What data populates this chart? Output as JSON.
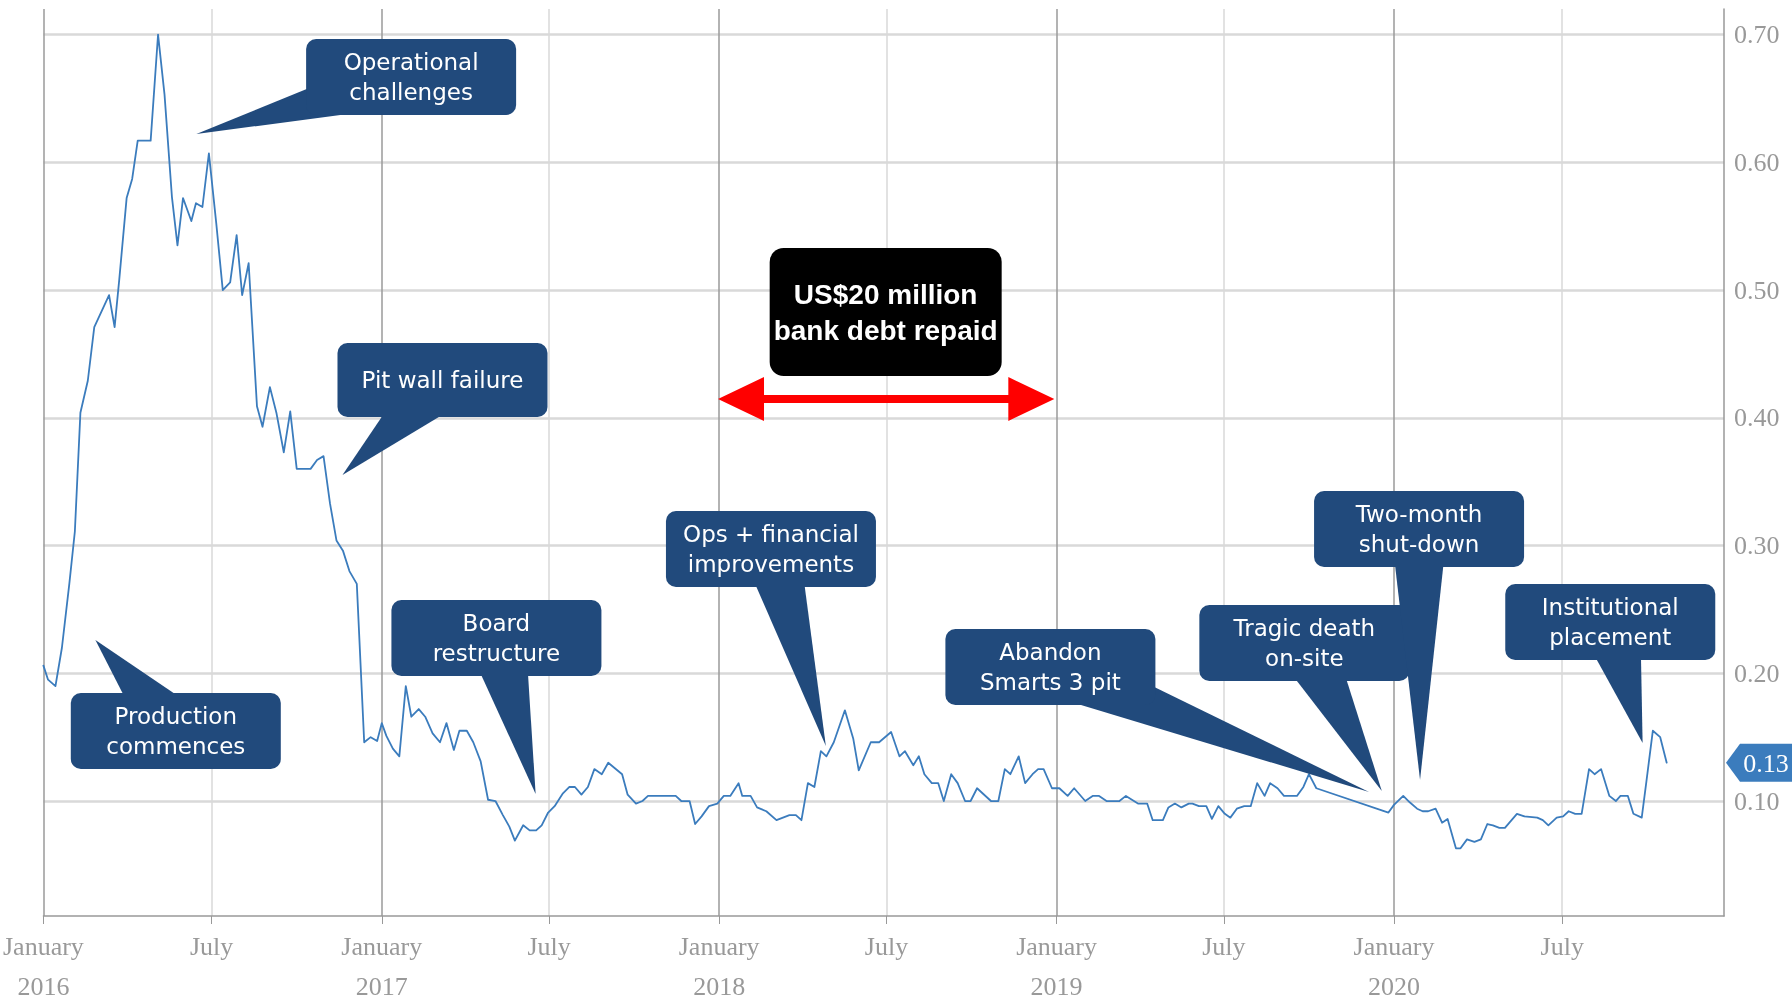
{
  "chart_data": {
    "type": "line",
    "color": "#3b7cbd",
    "x": [
      "2016-01-01",
      "2016-01-06",
      "2016-01-14",
      "2016-01-21",
      "2016-01-29",
      "2016-02-04",
      "2016-02-10",
      "2016-02-18",
      "2016-02-25",
      "2016-03-12",
      "2016-03-18",
      "2016-03-23",
      "2016-03-31",
      "2016-04-06",
      "2016-04-12",
      "2016-04-26",
      "2016-05-04",
      "2016-05-11",
      "2016-05-19",
      "2016-05-25",
      "2016-05-31",
      "2016-06-09",
      "2016-06-14",
      "2016-06-21",
      "2016-06-28",
      "2016-07-06",
      "2016-07-13",
      "2016-07-21",
      "2016-07-28",
      "2016-08-03",
      "2016-08-10",
      "2016-08-19",
      "2016-08-25",
      "2016-09-02",
      "2016-09-09",
      "2016-09-17",
      "2016-09-24",
      "2016-10-01",
      "2016-10-16",
      "2016-10-23",
      "2016-10-30",
      "2016-11-06",
      "2016-11-13",
      "2016-11-20",
      "2016-11-27",
      "2016-12-05",
      "2016-12-13",
      "2016-12-20",
      "2016-12-27",
      "2017-01-01",
      "2017-01-06",
      "2017-01-13",
      "2017-01-20",
      "2017-01-27",
      "2017-02-02",
      "2017-02-10",
      "2017-02-17",
      "2017-02-25",
      "2017-03-05",
      "2017-03-12",
      "2017-03-20",
      "2017-03-26",
      "2017-04-03",
      "2017-04-10",
      "2017-04-18",
      "2017-04-26",
      "2017-05-04",
      "2017-05-12",
      "2017-05-19",
      "2017-05-25",
      "2017-06-03",
      "2017-06-10",
      "2017-06-17",
      "2017-06-23",
      "2017-06-30",
      "2017-07-07",
      "2017-07-16",
      "2017-07-23",
      "2017-07-29",
      "2017-08-05",
      "2017-08-12",
      "2017-08-19",
      "2017-08-27",
      "2017-09-03",
      "2017-09-18",
      "2017-09-24",
      "2017-10-03",
      "2017-10-10",
      "2017-10-16",
      "2017-11-15",
      "2017-11-21",
      "2017-11-30",
      "2017-12-06",
      "2017-12-13",
      "2017-12-21",
      "2017-12-30",
      "2018-01-06",
      "2018-01-13",
      "2018-01-22",
      "2018-01-26",
      "2018-02-04",
      "2018-02-11",
      "2018-02-21",
      "2018-03-04",
      "2018-03-18",
      "2018-03-25",
      "2018-03-31",
      "2018-04-07",
      "2018-04-14",
      "2018-04-21",
      "2018-04-27",
      "2018-05-05",
      "2018-05-17",
      "2018-05-26",
      "2018-06-01",
      "2018-06-14",
      "2018-06-23",
      "2018-07-06",
      "2018-07-15",
      "2018-07-21",
      "2018-07-30",
      "2018-08-05",
      "2018-08-11",
      "2018-08-19",
      "2018-08-26",
      "2018-09-01",
      "2018-09-09",
      "2018-09-16",
      "2018-09-24",
      "2018-09-30",
      "2018-10-07",
      "2018-10-22",
      "2018-10-30",
      "2018-11-06",
      "2018-11-12",
      "2018-11-21",
      "2018-11-28",
      "2018-12-06",
      "2018-12-12",
      "2018-12-18",
      "2018-12-27",
      "2019-01-04",
      "2019-01-13",
      "2019-01-20",
      "2019-02-01",
      "2019-02-09",
      "2019-02-16",
      "2019-02-24",
      "2019-03-10",
      "2019-03-17",
      "2019-03-30",
      "2019-04-09",
      "2019-04-15",
      "2019-04-26",
      "2019-05-02",
      "2019-05-09",
      "2019-05-16",
      "2019-05-24",
      "2019-05-28",
      "2019-06-04",
      "2019-06-12",
      "2019-06-18",
      "2019-06-25",
      "2019-07-02",
      "2019-07-08",
      "2019-07-15",
      "2019-07-23",
      "2019-07-30",
      "2019-08-06",
      "2019-08-14",
      "2019-08-20",
      "2019-08-28",
      "2019-09-04",
      "2019-09-18",
      "2019-09-25",
      "2019-10-01",
      "2019-10-09",
      "2019-12-26",
      "2020-01-01",
      "2020-01-11",
      "2020-01-18",
      "2020-01-26",
      "2020-02-01",
      "2020-02-07",
      "2020-02-15",
      "2020-02-22",
      "2020-02-28",
      "2020-03-08",
      "2020-03-13",
      "2020-03-20",
      "2020-03-28",
      "2020-04-04",
      "2020-04-11",
      "2020-04-17",
      "2020-04-24",
      "2020-04-30",
      "2020-05-13",
      "2020-05-21",
      "2020-06-04",
      "2020-06-10",
      "2020-06-16",
      "2020-06-25",
      "2020-07-02",
      "2020-07-08",
      "2020-07-15",
      "2020-07-22",
      "2020-07-30",
      "2020-08-05",
      "2020-08-12",
      "2020-08-21",
      "2020-08-28",
      "2020-09-02",
      "2020-09-10",
      "2020-09-16",
      "2020-09-25",
      "2020-09-30",
      "2020-10-07",
      "2020-10-15",
      "2020-10-22"
    ],
    "values": [
      0.206,
      0.195,
      0.19,
      0.22,
      0.27,
      0.311,
      0.404,
      0.429,
      0.471,
      0.496,
      0.471,
      0.508,
      0.572,
      0.587,
      0.617,
      0.617,
      0.7,
      0.653,
      0.573,
      0.535,
      0.572,
      0.554,
      0.568,
      0.565,
      0.607,
      0.552,
      0.5,
      0.506,
      0.543,
      0.496,
      0.521,
      0.409,
      0.393,
      0.424,
      0.404,
      0.373,
      0.405,
      0.36,
      0.36,
      0.367,
      0.37,
      0.333,
      0.304,
      0.296,
      0.28,
      0.27,
      0.146,
      0.15,
      0.147,
      0.161,
      0.151,
      0.141,
      0.135,
      0.19,
      0.166,
      0.172,
      0.166,
      0.153,
      0.146,
      0.161,
      0.14,
      0.155,
      0.155,
      0.146,
      0.131,
      0.101,
      0.1,
      0.089,
      0.08,
      0.069,
      0.081,
      0.077,
      0.077,
      0.081,
      0.091,
      0.096,
      0.106,
      0.111,
      0.111,
      0.105,
      0.111,
      0.125,
      0.121,
      0.13,
      0.121,
      0.105,
      0.098,
      0.1,
      0.104,
      0.104,
      0.1,
      0.1,
      0.082,
      0.088,
      0.096,
      0.098,
      0.104,
      0.104,
      0.114,
      0.104,
      0.104,
      0.095,
      0.092,
      0.085,
      0.089,
      0.089,
      0.085,
      0.114,
      0.111,
      0.139,
      0.135,
      0.146,
      0.171,
      0.149,
      0.124,
      0.146,
      0.146,
      0.154,
      0.135,
      0.139,
      0.128,
      0.135,
      0.121,
      0.114,
      0.114,
      0.1,
      0.121,
      0.114,
      0.1,
      0.1,
      0.11,
      0.1,
      0.1,
      0.125,
      0.121,
      0.135,
      0.114,
      0.121,
      0.125,
      0.125,
      0.11,
      0.11,
      0.104,
      0.11,
      0.1,
      0.104,
      0.104,
      0.1,
      0.1,
      0.104,
      0.098,
      0.098,
      0.085,
      0.085,
      0.095,
      0.098,
      0.095,
      0.098,
      0.098,
      0.096,
      0.096,
      0.086,
      0.096,
      0.09,
      0.087,
      0.094,
      0.096,
      0.096,
      0.114,
      0.104,
      0.114,
      0.11,
      0.104,
      0.104,
      0.111,
      0.121,
      0.11,
      0.091,
      0.097,
      0.104,
      0.099,
      0.094,
      0.092,
      0.092,
      0.094,
      0.083,
      0.086,
      0.063,
      0.063,
      0.07,
      0.068,
      0.07,
      0.082,
      0.081,
      0.079,
      0.079,
      0.09,
      0.088,
      0.087,
      0.085,
      0.081,
      0.087,
      0.088,
      0.092,
      0.09,
      0.09,
      0.125,
      0.121,
      0.125,
      0.104,
      0.1,
      0.104,
      0.104,
      0.09,
      0.087,
      0.115,
      0.155,
      0.15,
      0.13
    ],
    "xlim": [
      "2016-01-01",
      "2020-12-23"
    ],
    "xticks": [
      {
        "value": "2016-01-01",
        "label": "January\n2016"
      },
      {
        "value": "2016-07-01",
        "label": "July"
      },
      {
        "value": "2017-01-01",
        "label": "January\n2017"
      },
      {
        "value": "2017-07-01",
        "label": "July"
      },
      {
        "value": "2018-01-01",
        "label": "January\n2018"
      },
      {
        "value": "2018-07-01",
        "label": "July"
      },
      {
        "value": "2019-01-01",
        "label": "January\n2019"
      },
      {
        "value": "2019-07-01",
        "label": "July"
      },
      {
        "value": "2020-01-01",
        "label": "January\n2020"
      },
      {
        "value": "2020-07-01",
        "label": "July"
      }
    ],
    "ylim": [
      0.01,
      0.72
    ],
    "yticks": [
      {
        "value": 0.1,
        "label": "0.10"
      },
      {
        "value": 0.2,
        "label": "0.20"
      },
      {
        "value": 0.3,
        "label": "0.30"
      },
      {
        "value": 0.4,
        "label": "0.40"
      },
      {
        "value": 0.5,
        "label": "0.50"
      },
      {
        "value": 0.6,
        "label": "0.60"
      },
      {
        "value": 0.7,
        "label": "0.70"
      }
    ],
    "grid": true,
    "annotations": [
      "Production\ncommences",
      "Operational\nchallenges",
      "Pit wall failure",
      "Board\nrestructure",
      "Ops + financial\nimprovements",
      "Abandon\nSmarts 3 pit",
      "Tragic death\non-site",
      "Two-month\nshut-down",
      "Institutional\nplacement",
      "US$20 million\nbank debt repaid",
      {
        "text": "0.13",
        "x": "2020-10-22",
        "y": 0.13
      }
    ]
  }
}
